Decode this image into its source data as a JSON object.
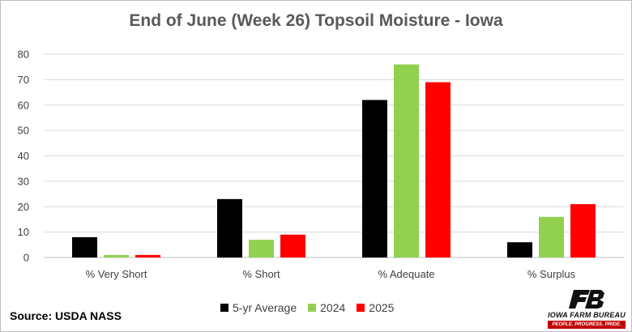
{
  "title": "End of June (Week 26) Topsoil Moisture - Iowa",
  "source": "Source: USDA NASS",
  "logo": {
    "name": "IOWA FARM BUREAU",
    "tagline": "PEOPLE. PROGRESS. PRIDE."
  },
  "colors": {
    "5-yr Average": "#000000",
    "2024": "#92d050",
    "2025": "#ff0000",
    "grid": "#d9d9d9",
    "brand_red": "#c00000"
  },
  "chart_data": {
    "type": "bar",
    "title": "End of June (Week 26) Topsoil Moisture - Iowa",
    "categories": [
      "% Very Short",
      "% Short",
      "% Adequate",
      "% Surplus"
    ],
    "series": [
      {
        "name": "5-yr Average",
        "values": [
          8,
          23,
          62,
          6
        ]
      },
      {
        "name": "2024",
        "values": [
          1,
          7,
          76,
          16
        ]
      },
      {
        "name": "2025",
        "values": [
          1,
          9,
          69,
          21
        ]
      }
    ],
    "yticks": [
      0,
      10,
      20,
      30,
      40,
      50,
      60,
      70,
      80
    ],
    "ylim": [
      0,
      80
    ],
    "grid": true,
    "legend_position": "bottom"
  }
}
